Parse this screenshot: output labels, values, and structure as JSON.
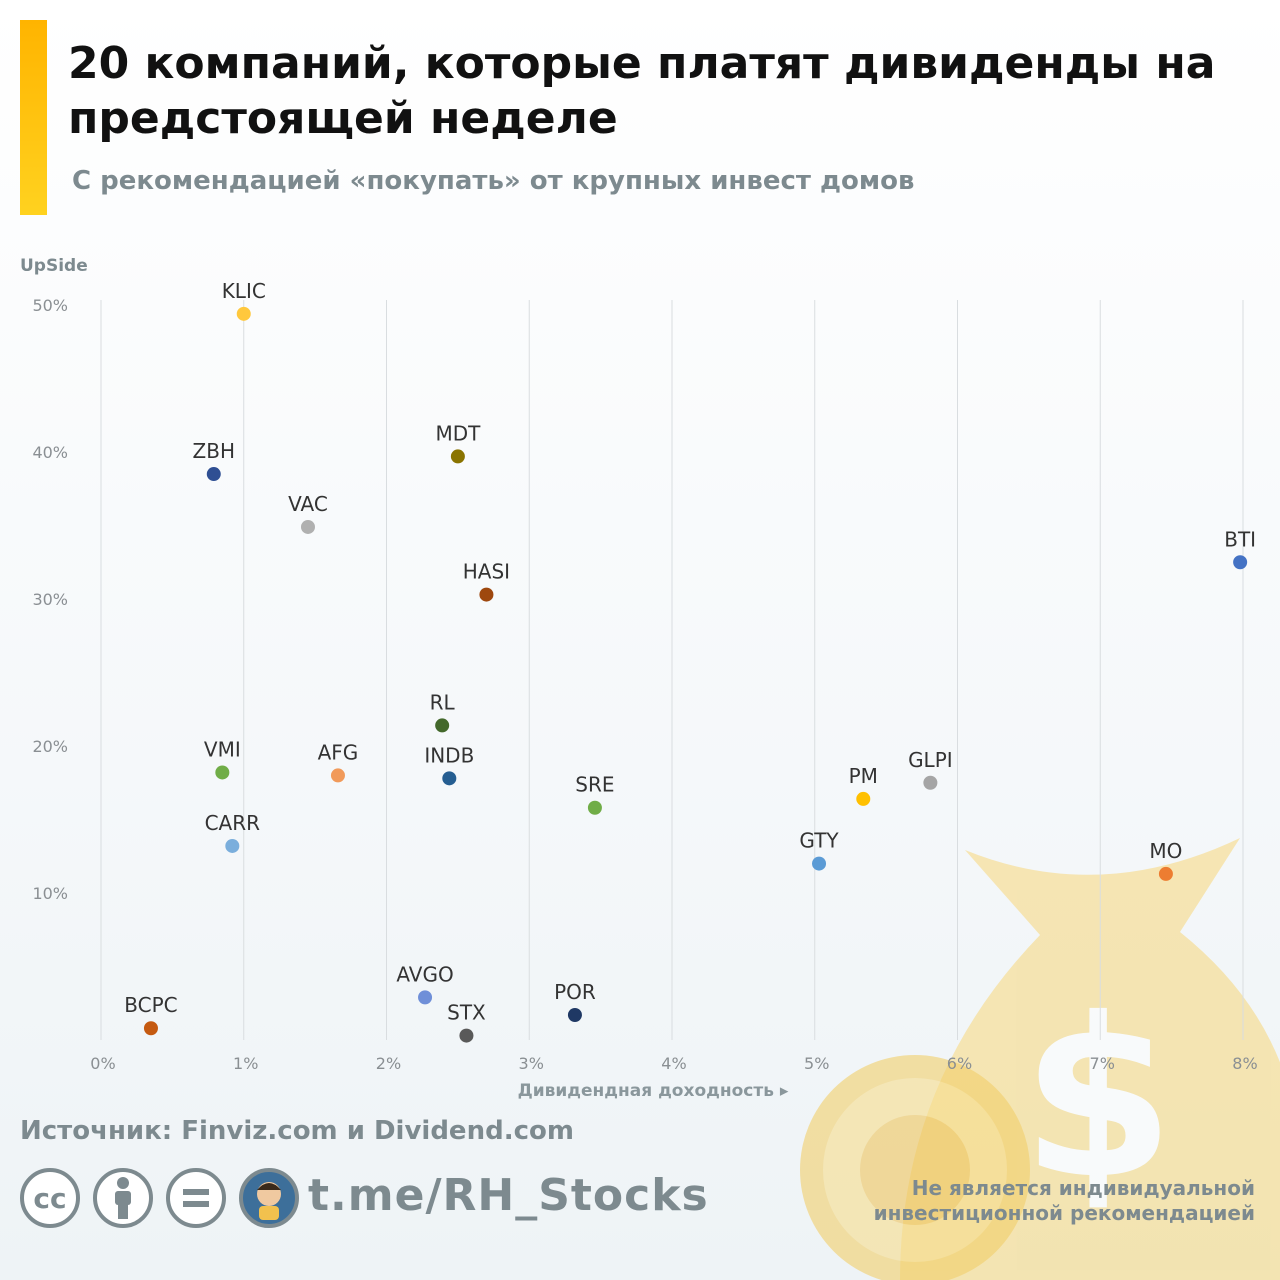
{
  "header": {
    "title": "20 компаний, которые платят дивиденды на предстоящей неделе",
    "subtitle": "С рекомендацией «покупать» от крупных инвест домов"
  },
  "footer": {
    "source": "Источник: Finviz.com и Dividend.com",
    "link": "t.me/RH_Stocks",
    "disclaimer_line1": "Не является индивидуальной",
    "disclaimer_line2": "инвестиционной рекомендацией"
  },
  "colors": {
    "accent": "#ffc107",
    "muted_text": "#7d8a8f",
    "bag": "#f7d77a"
  },
  "chart_data": {
    "type": "scatter",
    "xlabel": "Дивидендная доходность ▸",
    "ylabel": "UpSide",
    "xlim": [
      0,
      8
    ],
    "ylim": [
      0,
      50
    ],
    "x_ticks": [
      0,
      1,
      2,
      3,
      4,
      5,
      6,
      7,
      8
    ],
    "x_tick_labels": [
      "0%",
      "1%",
      "2%",
      "3%",
      "4%",
      "5%",
      "6%",
      "7%",
      "8%"
    ],
    "y_ticks": [
      10,
      20,
      30,
      40,
      50
    ],
    "y_tick_labels": [
      "10%",
      "20%",
      "30%",
      "40%",
      "50%"
    ],
    "grid": "vertical",
    "points": [
      {
        "label": "KLIC",
        "x": 1.0,
        "y": 49.4,
        "color": "#ffc83d"
      },
      {
        "label": "ZBH",
        "x": 0.79,
        "y": 38.5,
        "color": "#2f4f93"
      },
      {
        "label": "MDT",
        "x": 2.5,
        "y": 39.7,
        "color": "#8a7400"
      },
      {
        "label": "VAC",
        "x": 1.45,
        "y": 34.9,
        "color": "#b0b0b0"
      },
      {
        "label": "BTI",
        "x": 7.98,
        "y": 32.5,
        "color": "#4472c4"
      },
      {
        "label": "HASI",
        "x": 2.7,
        "y": 30.3,
        "color": "#9e480e"
      },
      {
        "label": "RL",
        "x": 2.39,
        "y": 21.4,
        "color": "#43682b"
      },
      {
        "label": "VMI",
        "x": 0.85,
        "y": 18.2,
        "color": "#70ad47"
      },
      {
        "label": "AFG",
        "x": 1.66,
        "y": 18.0,
        "color": "#f19a5a"
      },
      {
        "label": "INDB",
        "x": 2.44,
        "y": 17.8,
        "color": "#255e91"
      },
      {
        "label": "SRE",
        "x": 3.46,
        "y": 15.8,
        "color": "#70ad47"
      },
      {
        "label": "PM",
        "x": 5.34,
        "y": 16.4,
        "color": "#ffc000"
      },
      {
        "label": "GLPI",
        "x": 5.81,
        "y": 17.5,
        "color": "#a5a5a5"
      },
      {
        "label": "CARR",
        "x": 0.92,
        "y": 13.2,
        "color": "#7aaedc"
      },
      {
        "label": "GTY",
        "x": 5.03,
        "y": 12.0,
        "color": "#5b9bd5"
      },
      {
        "label": "MO",
        "x": 7.46,
        "y": 11.3,
        "color": "#ed7d31"
      },
      {
        "label": "AVGO",
        "x": 2.27,
        "y": 2.9,
        "color": "#6f8fd8"
      },
      {
        "label": "POR",
        "x": 3.32,
        "y": 1.7,
        "color": "#1f3864"
      },
      {
        "label": "STX",
        "x": 2.56,
        "y": 0.3,
        "color": "#595959"
      },
      {
        "label": "BCPC",
        "x": 0.35,
        "y": 0.8,
        "color": "#c55a11"
      }
    ]
  }
}
